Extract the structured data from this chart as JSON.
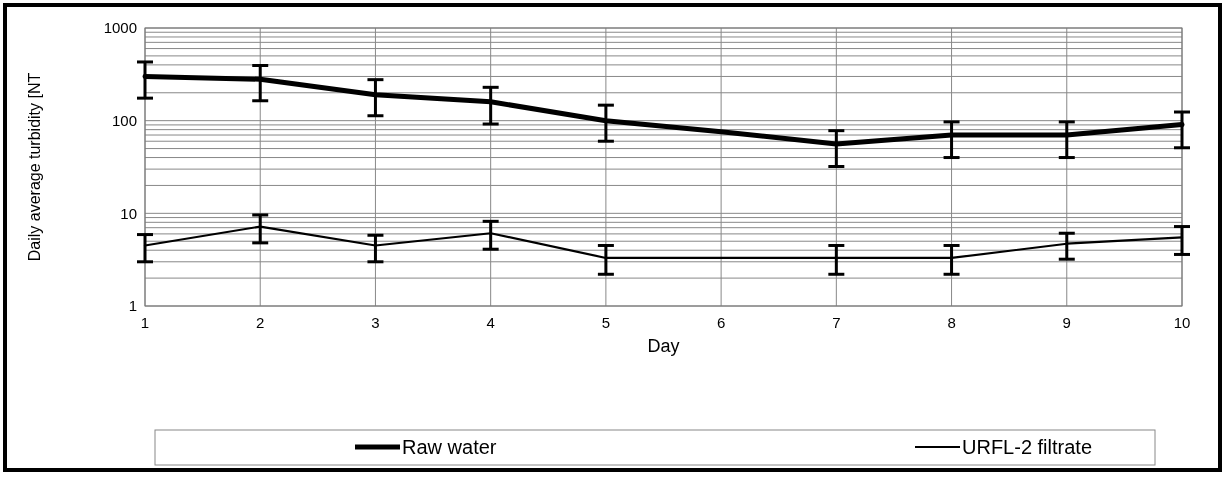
{
  "chart_data": {
    "type": "line",
    "xlabel": "Day",
    "ylabel": "Daily average turbidity [NT",
    "x": [
      1,
      2,
      3,
      4,
      5,
      6,
      7,
      8,
      9,
      10
    ],
    "xlim": [
      1,
      10
    ],
    "xticks": [
      1,
      2,
      3,
      4,
      5,
      6,
      7,
      8,
      9,
      10
    ],
    "log": true,
    "ylim": [
      1,
      1000
    ],
    "yticks": [
      1,
      {
        "value": 2,
        "label": null
      },
      {
        "value": 3,
        "label": null
      },
      {
        "value": 4,
        "label": null
      },
      {
        "value": 5,
        "label": null
      },
      {
        "value": 6,
        "label": null
      },
      {
        "value": 7,
        "label": null
      },
      {
        "value": 8,
        "label": null
      },
      {
        "value": 9,
        "label": null
      },
      10,
      {
        "value": 20,
        "label": null
      },
      {
        "value": 30,
        "label": null
      },
      {
        "value": 40,
        "label": null
      },
      {
        "value": 50,
        "label": null
      },
      {
        "value": 60,
        "label": null
      },
      {
        "value": 70,
        "label": null
      },
      {
        "value": 80,
        "label": null
      },
      {
        "value": 90,
        "label": null
      },
      100,
      {
        "value": 200,
        "label": null
      },
      {
        "value": 300,
        "label": null
      },
      {
        "value": 400,
        "label": null
      },
      {
        "value": 500,
        "label": null
      },
      {
        "value": 600,
        "label": null
      },
      {
        "value": 700,
        "label": null
      },
      {
        "value": 800,
        "label": null
      },
      {
        "value": 900,
        "label": null
      },
      1000
    ],
    "grid": true,
    "legend": "bottom",
    "marker": "none",
    "line_style": "solid",
    "series": [
      {
        "name": "Raw water",
        "color": "#000000",
        "values": [
          300,
          280,
          190,
          160,
          100,
          76,
          56,
          70,
          70,
          91
        ],
        "errors": [
          [
            175,
            430
          ],
          [
            164,
            394
          ],
          [
            113,
            277
          ],
          [
            92,
            229
          ],
          [
            60,
            147
          ],
          null,
          [
            32,
            78
          ],
          [
            40,
            97
          ],
          [
            40,
            97
          ],
          [
            51,
            124
          ]
        ]
      },
      {
        "name": "URFL-2 filtrate",
        "color": "#000000",
        "values": [
          4.5,
          7.2,
          4.5,
          6.1,
          3.3,
          3.3,
          3.3,
          3.3,
          4.7,
          5.5
        ],
        "errors": [
          [
            3.0,
            5.9
          ],
          [
            4.8,
            9.6
          ],
          [
            3.0,
            5.8
          ],
          [
            4.1,
            8.2
          ],
          [
            2.2,
            4.5
          ],
          null,
          [
            2.2,
            4.5
          ],
          [
            2.2,
            4.5
          ],
          [
            3.2,
            6.1
          ],
          [
            3.6,
            7.2
          ]
        ]
      }
    ]
  }
}
